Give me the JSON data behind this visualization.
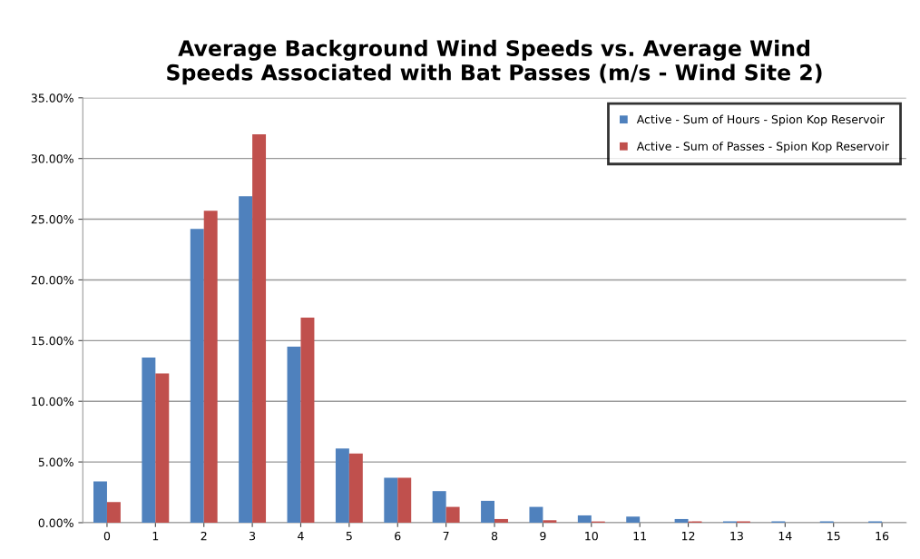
{
  "chart_data": {
    "type": "bar",
    "title": "Average Background Wind Speeds vs. Average Wind\nSpeeds Associated with Bat Passes (m/s - Wind Site 2)",
    "categories": [
      "0",
      "1",
      "2",
      "3",
      "4",
      "5",
      "6",
      "7",
      "8",
      "9",
      "10",
      "11",
      "12",
      "13",
      "14",
      "15",
      "16"
    ],
    "series": [
      {
        "name": "Active - Sum of Hours - Spion Kop Reservoir",
        "color": "#4f81bd",
        "values": [
          3.4,
          13.6,
          24.2,
          26.9,
          14.5,
          6.1,
          3.7,
          2.6,
          1.8,
          1.3,
          0.6,
          0.5,
          0.3,
          0.1,
          0.1,
          0.1,
          0.1
        ]
      },
      {
        "name": "Active - Sum of Passes - Spion Kop Reservoir",
        "color": "#c0504d",
        "values": [
          1.7,
          12.3,
          25.7,
          32.0,
          16.9,
          5.7,
          3.7,
          1.3,
          0.3,
          0.2,
          0.1,
          0,
          0.1,
          0.1,
          0,
          0,
          0
        ]
      }
    ],
    "ylim": [
      0,
      35
    ],
    "yticks": [
      {
        "value": 0,
        "label": "0.00%"
      },
      {
        "value": 5,
        "label": "5.00%"
      },
      {
        "value": 10,
        "label": "10.00%"
      },
      {
        "value": 15,
        "label": "15.00%"
      },
      {
        "value": 20,
        "label": "20.00%"
      },
      {
        "value": 25,
        "label": "25.00%"
      },
      {
        "value": 30,
        "label": "30.00%"
      },
      {
        "value": 35,
        "label": "35.00%"
      }
    ],
    "grid": "y",
    "legend": "top right"
  }
}
